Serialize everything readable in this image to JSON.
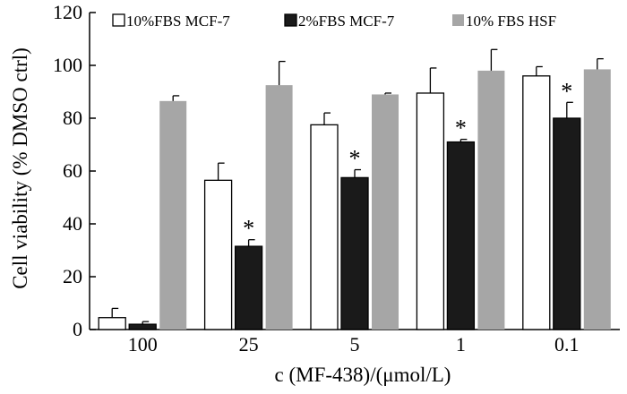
{
  "chart_data": {
    "type": "bar",
    "xlabel": "c (MF-438)/(μmol/L)",
    "ylabel": "Cell viability (% DMSO ctrl)",
    "ylim": [
      0,
      120
    ],
    "yticks": [
      "0",
      "20",
      "40",
      "60",
      "80",
      "100",
      "120"
    ],
    "categories": [
      "100",
      "25",
      "5",
      "1",
      "0.1"
    ],
    "series": [
      {
        "name": "10%FBS MCF-7",
        "color": "#ffffff",
        "values": [
          4.5,
          56.5,
          77.5,
          89.5,
          96
        ],
        "errors": [
          3.5,
          6.5,
          4.5,
          9.5,
          3.5
        ]
      },
      {
        "name": "2%FBS MCF-7",
        "color": "#1a1a1a",
        "values": [
          2,
          31.5,
          57.5,
          71,
          80
        ],
        "errors": [
          1,
          2.5,
          3,
          1,
          6
        ],
        "annotations": [
          "",
          "*",
          "*",
          "*",
          "*"
        ]
      },
      {
        "name": "10% FBS HSF",
        "color": "#a6a6a6",
        "values": [
          86.5,
          92.5,
          89,
          98,
          98.5
        ],
        "errors": [
          2,
          9,
          0.5,
          8,
          4
        ]
      }
    ],
    "legend_position": "top",
    "grid": false
  }
}
